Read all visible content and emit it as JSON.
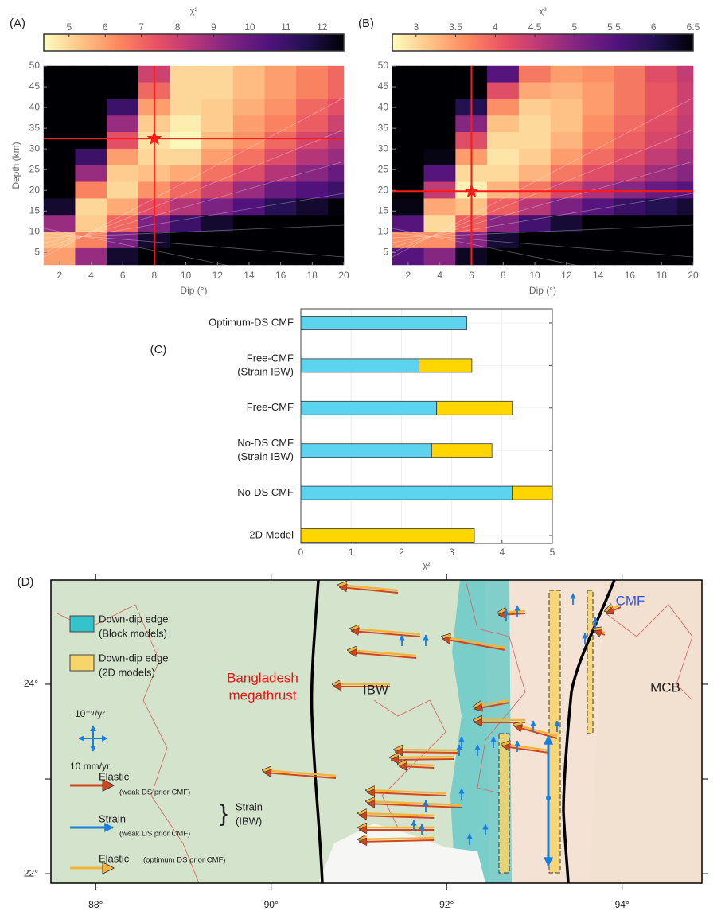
{
  "chart_data": [
    {
      "type": "heatmap",
      "panel": "(A)",
      "colorbar_label": "χ²",
      "x_label": "Dip (°)",
      "y_label": "Depth (km)",
      "x": [
        2,
        4,
        6,
        8,
        10,
        12,
        14,
        16,
        18,
        20
      ],
      "y": [
        48,
        44,
        40,
        36,
        32,
        28,
        24,
        20,
        16,
        12,
        8,
        4
      ],
      "z": [
        [
          13,
          13,
          13,
          8,
          5,
          5,
          5.5,
          6,
          6.5,
          7
        ],
        [
          13,
          13,
          13,
          7,
          5,
          5,
          5.5,
          6,
          6.5,
          7
        ],
        [
          13,
          13,
          11,
          6,
          5,
          5.2,
          5.7,
          6.2,
          7,
          7.5
        ],
        [
          13,
          13,
          9,
          5.2,
          4.6,
          5.2,
          6,
          6.5,
          7.2,
          8
        ],
        [
          13,
          13,
          7.5,
          4.8,
          4.4,
          5.5,
          6.2,
          7,
          7.8,
          8.5
        ],
        [
          13,
          11,
          6,
          5,
          5,
          6,
          6.8,
          7.6,
          8.5,
          9
        ],
        [
          13,
          9,
          5.2,
          5.4,
          5.8,
          6.8,
          7.6,
          8.5,
          9.3,
          10
        ],
        [
          13,
          6.5,
          5,
          6.2,
          7,
          8,
          9,
          10,
          10.5,
          11
        ],
        [
          12,
          5,
          5.8,
          7.5,
          8.5,
          9.5,
          10.5,
          11.5,
          12,
          12.5
        ],
        [
          9,
          5.2,
          7,
          9.5,
          11,
          12,
          13,
          13,
          13,
          13
        ],
        [
          5.5,
          6.5,
          9.5,
          12,
          13,
          13,
          13,
          13,
          13,
          13
        ],
        [
          6,
          9,
          12,
          13,
          13,
          13,
          13,
          13,
          13,
          13
        ]
      ],
      "xlim": [
        1,
        20
      ],
      "ylim": [
        2,
        50
      ],
      "xticks": [
        2,
        4,
        6,
        8,
        10,
        12,
        14,
        16,
        18,
        20
      ],
      "yticks": [
        5,
        10,
        15,
        20,
        25,
        30,
        35,
        40,
        45,
        50
      ],
      "clim": [
        4.3,
        12.6
      ],
      "cticks": [
        5,
        6,
        7,
        8,
        9,
        10,
        11,
        12
      ],
      "colormap": [
        "#fcfdbf",
        "#fec488",
        "#fc8961",
        "#e75263",
        "#b73779",
        "#7c2382",
        "#51127c",
        "#221150",
        "#000004"
      ],
      "best": {
        "x": 8,
        "y": 32.5
      },
      "marker_color": "#ff1a1a"
    },
    {
      "type": "heatmap",
      "panel": "(B)",
      "colorbar_label": "χ²",
      "x_label": "Dip (°)",
      "x": [
        2,
        4,
        6,
        8,
        10,
        12,
        14,
        16,
        18,
        20
      ],
      "y": [
        48,
        44,
        40,
        36,
        32,
        28,
        24,
        20,
        16,
        12,
        8,
        4
      ],
      "z": [
        [
          6.6,
          6.6,
          6.6,
          5.5,
          3.8,
          3.5,
          3.6,
          3.8,
          4.2,
          4.5
        ],
        [
          6.6,
          6.6,
          6.6,
          4.2,
          3.4,
          3.3,
          3.5,
          3.8,
          4.1,
          4.4
        ],
        [
          6.6,
          6.6,
          6,
          3.6,
          3.1,
          3.2,
          3.5,
          3.8,
          4.1,
          4.4
        ],
        [
          6.6,
          6.6,
          5,
          3.2,
          3,
          3.2,
          3.6,
          3.9,
          4.2,
          4.5
        ],
        [
          6.6,
          6.6,
          4.2,
          3,
          3,
          3.3,
          3.7,
          4,
          4.3,
          4.6
        ],
        [
          6.6,
          6.4,
          3.5,
          2.9,
          3.1,
          3.5,
          3.9,
          4.2,
          4.5,
          4.8
        ],
        [
          6.6,
          5.5,
          3,
          3,
          3.3,
          3.8,
          4.2,
          4.5,
          4.8,
          5
        ],
        [
          6.6,
          4.5,
          2.8,
          3.3,
          3.8,
          4.3,
          4.7,
          5,
          5.3,
          5.5
        ],
        [
          6.4,
          3.4,
          3.2,
          4,
          4.6,
          5.1,
          5.5,
          5.8,
          6,
          6.2
        ],
        [
          5.5,
          3,
          4,
          5,
          5.7,
          6.2,
          6.5,
          6.6,
          6.6,
          6.6
        ],
        [
          3.6,
          3.6,
          5,
          6.2,
          6.6,
          6.6,
          6.6,
          6.6,
          6.6,
          6.6
        ],
        [
          5.5,
          5,
          6.3,
          6.6,
          6.6,
          6.6,
          6.6,
          6.6,
          6.6,
          6.6
        ]
      ],
      "xlim": [
        1,
        20
      ],
      "ylim": [
        2,
        50
      ],
      "xticks": [
        2,
        4,
        6,
        8,
        10,
        12,
        14,
        16,
        18,
        20
      ],
      "yticks": [
        5,
        10,
        15,
        20,
        25,
        30,
        35,
        40,
        45,
        50
      ],
      "clim": [
        2.7,
        6.5
      ],
      "cticks": [
        3,
        3.5,
        4,
        4.5,
        5,
        5.5,
        6,
        6.5
      ],
      "colormap": [
        "#fcfdbf",
        "#fec488",
        "#fc8961",
        "#e75263",
        "#b73779",
        "#7c2382",
        "#51127c",
        "#221150",
        "#000004"
      ],
      "best": {
        "x": 6,
        "y": 19.8
      },
      "marker_color": "#ff1a1a"
    },
    {
      "type": "bar",
      "orientation": "horizontal",
      "panel": "(C)",
      "x_label": "χ²",
      "categories": [
        [
          "Optimum-DS CMF"
        ],
        [
          "Free-CMF",
          "(Strain IBW)"
        ],
        [
          "Free-CMF"
        ],
        [
          "No-DS CMF",
          "(Strain IBW)"
        ],
        [
          "No-DS CMF"
        ],
        [
          "2D Model"
        ]
      ],
      "series": [
        {
          "color": "#5cd4ef",
          "values": [
            3.3,
            2.35,
            2.7,
            2.6,
            4.2,
            null
          ]
        },
        {
          "color": "#ffd600",
          "values": [
            null,
            1.05,
            1.5,
            1.2,
            0.8,
            3.45
          ]
        }
      ],
      "xlim": [
        0,
        5
      ],
      "xticks": [
        0,
        1,
        2,
        3,
        4,
        5
      ],
      "grid": true
    },
    {
      "type": "map",
      "panel": "(D)",
      "xlim": [
        87.49,
        94.91
      ],
      "ylim": [
        21.9,
        25.1
      ],
      "xticks": [
        {
          "value": 88,
          "label": "88°"
        },
        {
          "value": 90,
          "label": "90°"
        },
        {
          "value": 92,
          "label": "92°"
        },
        {
          "value": 94,
          "label": "94°"
        }
      ],
      "yticks": [
        {
          "value": 22,
          "label": "22°"
        },
        {
          "value": 23,
          "label": null
        },
        {
          "value": 24,
          "label": "24°"
        }
      ],
      "annotations": {
        "megathrust": [
          "Bangladesh",
          "megathrust"
        ],
        "ibw": "IBW",
        "mcb": "MCB",
        "cmf": "CMF"
      },
      "legend": {
        "block": [
          "Down-dip edge",
          "(Block models)"
        ],
        "twod": [
          "Down-dip edge",
          "(2D models)"
        ],
        "strain_scale": "10⁻⁹/yr",
        "velocity_scale": "10 mm/yr",
        "elastic_weak": [
          "Elastic",
          "(weak DS prior CMF)"
        ],
        "strain_weak": [
          "Strain",
          "(weak DS prior CMF)"
        ],
        "elastic_opt": [
          "Elastic",
          "(optimum DS prior CMF)"
        ],
        "strain_ibw": [
          "Strain",
          "(IBW)"
        ]
      }
    }
  ]
}
